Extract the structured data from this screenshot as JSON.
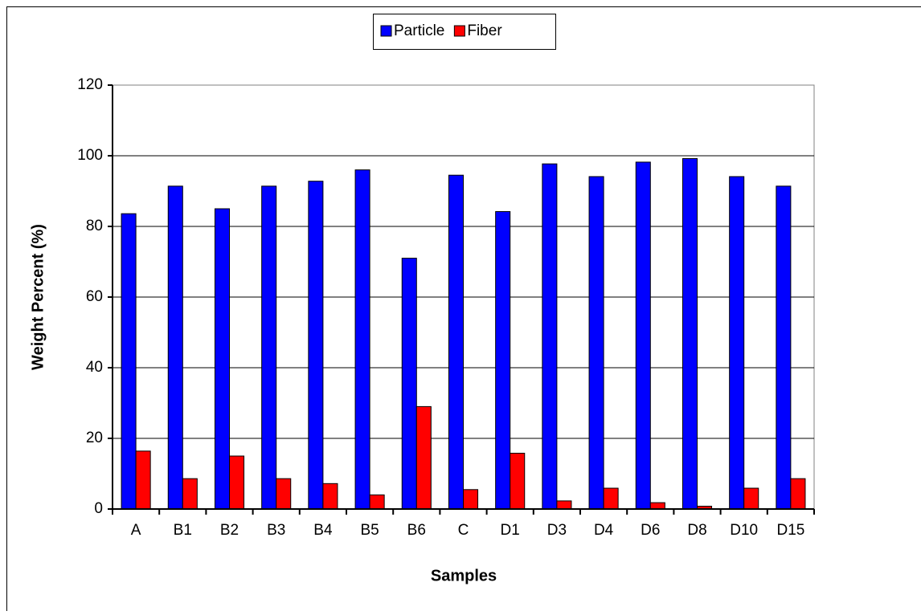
{
  "chart_data": {
    "type": "bar",
    "x_label": "Samples",
    "y_label": "Weight Percent (%)",
    "categories": [
      "A",
      "B1",
      "B2",
      "B3",
      "B4",
      "B5",
      "B6",
      "C",
      "D1",
      "D3",
      "D4",
      "D6",
      "D8",
      "D10",
      "D15"
    ],
    "series": [
      {
        "name": "Particle",
        "color": "#0000ff",
        "values": [
          83.6,
          91.4,
          85.0,
          91.4,
          92.8,
          96.0,
          71.0,
          94.5,
          84.2,
          97.7,
          94.1,
          98.2,
          99.2,
          94.1,
          91.4
        ]
      },
      {
        "name": "Fiber",
        "color": "#ff0000",
        "values": [
          16.4,
          8.6,
          15.0,
          8.6,
          7.2,
          4.0,
          29.0,
          5.5,
          15.8,
          2.3,
          5.9,
          1.8,
          0.8,
          5.9,
          8.6
        ]
      }
    ],
    "ylim": [
      0,
      120
    ],
    "yticks": [
      0,
      20,
      40,
      60,
      80,
      100,
      120
    ],
    "grid": true,
    "legend": "top"
  }
}
